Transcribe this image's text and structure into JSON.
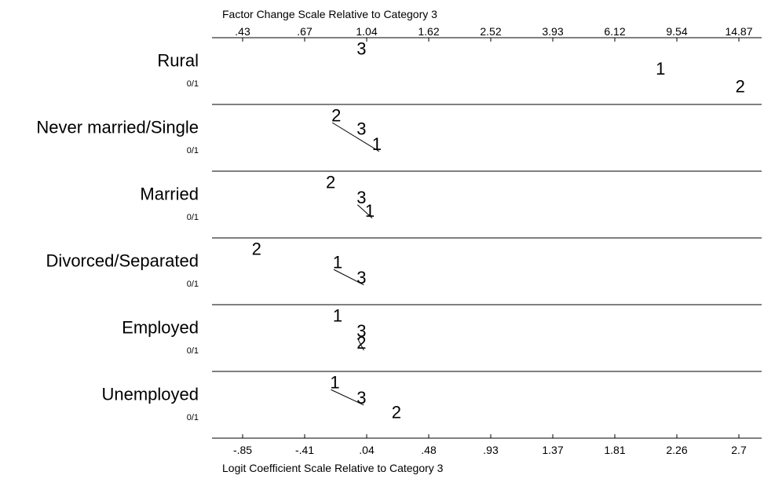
{
  "chart_data": {
    "type": "scatter",
    "top_axis_title": "Factor Change Scale Relative to Category 3",
    "bottom_axis_title": "Logit Coefficient Scale Relative to Category 3",
    "top_ticks": [
      ".43",
      ".67",
      "1.04",
      "1.62",
      "2.52",
      "3.93",
      "6.12",
      "9.54",
      "14.87"
    ],
    "bottom_ticks": [
      "-.85",
      "-.41",
      ".04",
      ".48",
      ".93",
      "1.37",
      "1.81",
      "2.26",
      "2.7"
    ],
    "xlim": [
      -0.85,
      2.7
    ],
    "reference_category": "3",
    "variables": [
      {
        "name": "Rural",
        "sublabel": "0/1",
        "points": [
          {
            "label": "3",
            "x": 0.0,
            "level": 0.25
          },
          {
            "label": "1",
            "x": 2.14,
            "level": 0.55
          },
          {
            "label": "2",
            "x": 2.71,
            "level": 0.82
          }
        ],
        "connect": []
      },
      {
        "name": "Never married/Single",
        "sublabel": "0/1",
        "points": [
          {
            "label": "2",
            "x": -0.18,
            "level": 0.25
          },
          {
            "label": "3",
            "x": 0.0,
            "level": 0.45
          },
          {
            "label": "1",
            "x": 0.11,
            "level": 0.68
          }
        ],
        "connect": [
          [
            "2",
            "1"
          ]
        ]
      },
      {
        "name": "Married",
        "sublabel": "0/1",
        "points": [
          {
            "label": "2",
            "x": -0.22,
            "level": 0.25
          },
          {
            "label": "3",
            "x": 0.0,
            "level": 0.48
          },
          {
            "label": "1",
            "x": 0.06,
            "level": 0.68
          }
        ],
        "connect": [
          [
            "3",
            "1"
          ]
        ]
      },
      {
        "name": "Divorced/Separated",
        "sublabel": "0/1",
        "points": [
          {
            "label": "2",
            "x": -0.75,
            "level": 0.25
          },
          {
            "label": "1",
            "x": -0.17,
            "level": 0.45
          },
          {
            "label": "3",
            "x": 0.0,
            "level": 0.68
          }
        ],
        "connect": [
          [
            "1",
            "3"
          ]
        ]
      },
      {
        "name": "Employed",
        "sublabel": "0/1",
        "points": [
          {
            "label": "1",
            "x": -0.17,
            "level": 0.25
          },
          {
            "label": "3",
            "x": 0.0,
            "level": 0.48
          },
          {
            "label": "2",
            "x": 0.0,
            "level": 0.66
          }
        ],
        "connect": [
          [
            "3",
            "2"
          ]
        ]
      },
      {
        "name": "Unemployed",
        "sublabel": "0/1",
        "points": [
          {
            "label": "1",
            "x": -0.19,
            "level": 0.25
          },
          {
            "label": "3",
            "x": 0.0,
            "level": 0.48
          },
          {
            "label": "2",
            "x": 0.25,
            "level": 0.7
          }
        ],
        "connect": [
          [
            "1",
            "3"
          ]
        ]
      }
    ]
  }
}
